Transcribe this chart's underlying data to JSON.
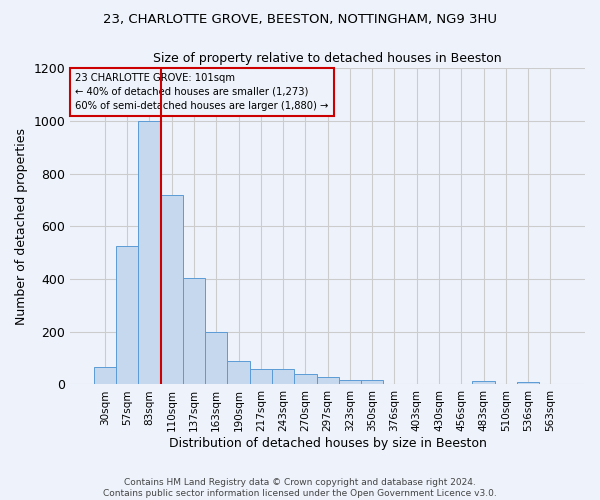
{
  "title_line1": "23, CHARLOTTE GROVE, BEESTON, NOTTINGHAM, NG9 3HU",
  "title_line2": "Size of property relative to detached houses in Beeston",
  "xlabel": "Distribution of detached houses by size in Beeston",
  "ylabel": "Number of detached properties",
  "footer_line1": "Contains HM Land Registry data © Crown copyright and database right 2024.",
  "footer_line2": "Contains public sector information licensed under the Open Government Licence v3.0.",
  "categories": [
    "30sqm",
    "57sqm",
    "83sqm",
    "110sqm",
    "137sqm",
    "163sqm",
    "190sqm",
    "217sqm",
    "243sqm",
    "270sqm",
    "297sqm",
    "323sqm",
    "350sqm",
    "376sqm",
    "403sqm",
    "430sqm",
    "456sqm",
    "483sqm",
    "510sqm",
    "536sqm",
    "563sqm"
  ],
  "values": [
    65,
    525,
    1000,
    720,
    405,
    198,
    90,
    58,
    58,
    38,
    30,
    18,
    18,
    0,
    0,
    0,
    0,
    12,
    0,
    10,
    0
  ],
  "bar_color": "#c5d8ed",
  "bar_edge_color": "#5b9bd5",
  "grid_color": "#cccccc",
  "background_color": "#eef3fb",
  "property_bin_index": 2,
  "vline_color": "#cc0000",
  "annotation_text_line1": "23 CHARLOTTE GROVE: 101sqm",
  "annotation_text_line2": "← 40% of detached houses are smaller (1,273)",
  "annotation_text_line3": "60% of semi-detached houses are larger (1,880) →",
  "annotation_box_edgecolor": "#cc0000",
  "ylim": [
    0,
    1200
  ],
  "yticks": [
    0,
    200,
    400,
    600,
    800,
    1000,
    1200
  ]
}
